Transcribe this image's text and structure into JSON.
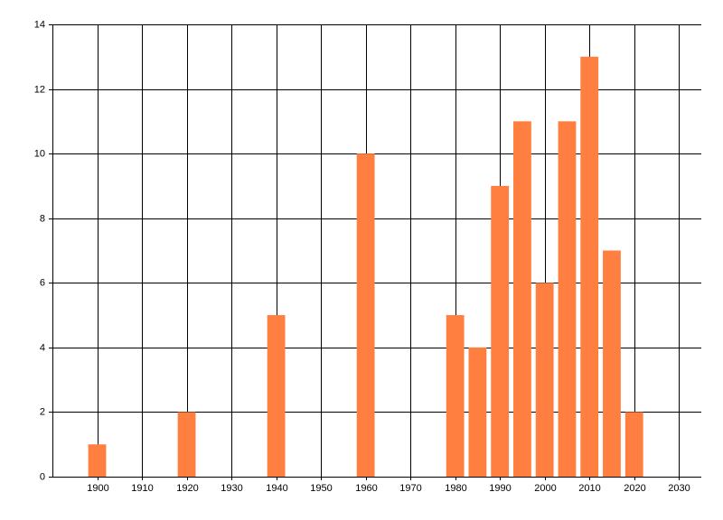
{
  "chart_data": {
    "type": "bar",
    "x": [
      1900,
      1920,
      1940,
      1960,
      1980,
      1985,
      1990,
      1995,
      2000,
      2005,
      2010,
      2015,
      2020
    ],
    "values": [
      1,
      2,
      5,
      10,
      5,
      4,
      9,
      11,
      6,
      11,
      13,
      7,
      2
    ],
    "color": "#fe7f3f",
    "xlim": [
      1890,
      2035
    ],
    "xticks": [
      1900,
      1910,
      1920,
      1930,
      1940,
      1950,
      1960,
      1970,
      1980,
      1990,
      2000,
      2010,
      2020,
      2030
    ],
    "ylim": [
      0,
      14
    ],
    "yticks": [
      0,
      2,
      4,
      6,
      8,
      10,
      12,
      14
    ],
    "grid": true
  }
}
